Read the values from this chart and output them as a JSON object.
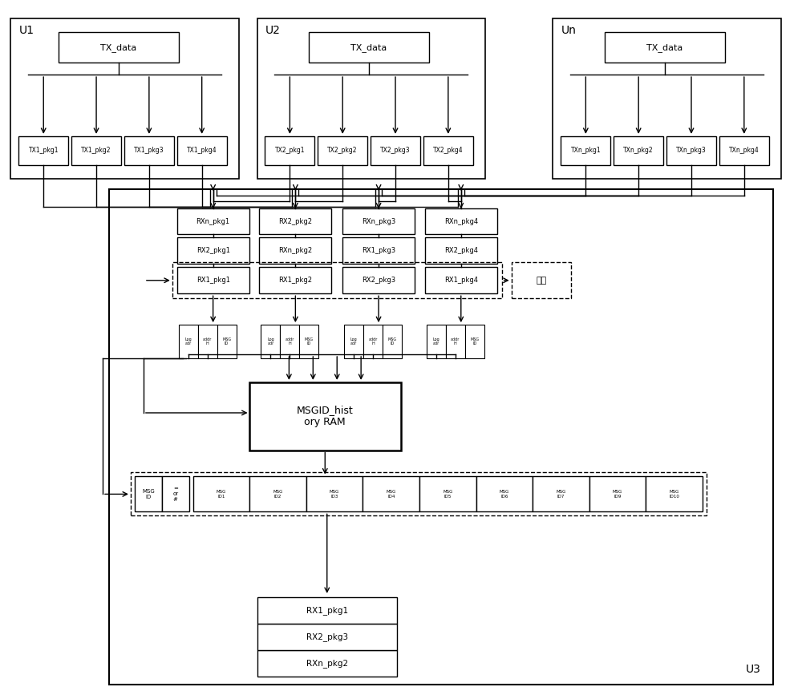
{
  "fig_width": 10.0,
  "fig_height": 8.67,
  "bg_color": "#ffffff",
  "u1_label": "U1",
  "u2_label": "U2",
  "un_label": "Un",
  "u3_label": "U3",
  "tx_data": "TX_data",
  "u1_pkgs": [
    "TX1_pkg1",
    "TX1_pkg2",
    "TX1_pkg3",
    "TX1_pkg4"
  ],
  "u2_pkgs": [
    "TX2_pkg1",
    "TX2_pkg2",
    "TX2_pkg3",
    "TX2_pkg4"
  ],
  "un_pkgs": [
    "TXn_pkg1",
    "TXn_pkg2",
    "TXn_pkg3",
    "TXn_pkg4"
  ],
  "rx_row1": [
    "RXn_pkg1",
    "RX2_pkg2",
    "RXn_pkg3",
    "RXn_pkg4"
  ],
  "rx_row2": [
    "RX2_pkg1",
    "RXn_pkg2",
    "RX1_pkg3",
    "RX2_pkg4"
  ],
  "rx_row3": [
    "RX1_pkg1",
    "RX1_pkg2",
    "RX2_pkg3",
    "RX1_pkg4"
  ],
  "discard_label": "丢弃",
  "msgid_label": "MSGID_hist\nory RAM",
  "output_pkgs": [
    "RXn_pkg2",
    "RX2_pkg3",
    "RX1_pkg1"
  ],
  "bottom_row_right": [
    "MSG\nID1",
    "MSG\nID2",
    "MSG\nID3",
    "MSG\nID4",
    "MSG\nID5",
    "MSG\nID6",
    "MSG\nID7",
    "MSG\nID9",
    "MSG\nID10"
  ]
}
